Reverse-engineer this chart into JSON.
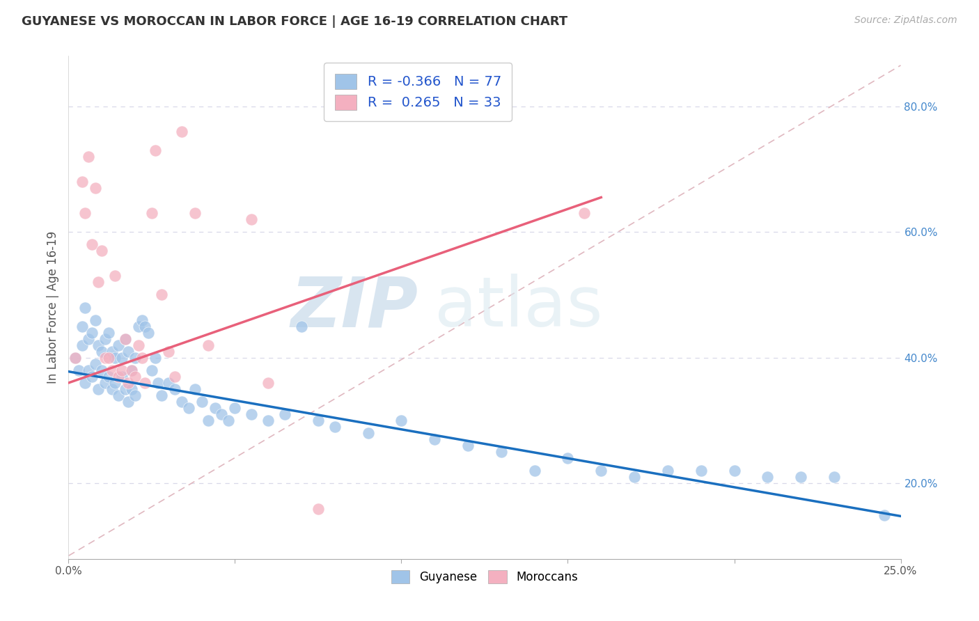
{
  "title": "GUYANESE VS MOROCCAN IN LABOR FORCE | AGE 16-19 CORRELATION CHART",
  "source": "Source: ZipAtlas.com",
  "ylabel": "In Labor Force | Age 16-19",
  "x_min": 0.0,
  "x_max": 0.25,
  "y_min": 0.08,
  "y_max": 0.88,
  "x_ticks": [
    0.0,
    0.05,
    0.1,
    0.15,
    0.2,
    0.25
  ],
  "y_ticks": [
    0.2,
    0.4,
    0.6,
    0.8
  ],
  "background_color": "#ffffff",
  "grid_color": "#d8d8e8",
  "blue_color": "#a0c4e8",
  "pink_color": "#f4b0c0",
  "blue_line_color": "#1a6fbf",
  "pink_line_color": "#e8607a",
  "dashed_line_color": "#e0b8c0",
  "legend_R_blue": "-0.366",
  "legend_N_blue": "77",
  "legend_R_pink": "0.265",
  "legend_N_pink": "33",
  "legend_label_blue": "Guyanese",
  "legend_label_pink": "Moroccans",
  "watermark_zip": "ZIP",
  "watermark_atlas": "atlas",
  "blue_scatter_x": [
    0.002,
    0.003,
    0.004,
    0.004,
    0.005,
    0.005,
    0.006,
    0.006,
    0.007,
    0.007,
    0.008,
    0.008,
    0.009,
    0.009,
    0.01,
    0.01,
    0.011,
    0.011,
    0.012,
    0.012,
    0.013,
    0.013,
    0.014,
    0.014,
    0.015,
    0.015,
    0.016,
    0.016,
    0.017,
    0.017,
    0.018,
    0.018,
    0.019,
    0.019,
    0.02,
    0.02,
    0.021,
    0.022,
    0.023,
    0.024,
    0.025,
    0.026,
    0.027,
    0.028,
    0.03,
    0.032,
    0.034,
    0.036,
    0.038,
    0.04,
    0.042,
    0.044,
    0.046,
    0.048,
    0.05,
    0.055,
    0.06,
    0.065,
    0.07,
    0.075,
    0.08,
    0.09,
    0.1,
    0.11,
    0.12,
    0.13,
    0.14,
    0.15,
    0.16,
    0.17,
    0.18,
    0.19,
    0.2,
    0.21,
    0.22,
    0.23,
    0.245
  ],
  "blue_scatter_y": [
    0.4,
    0.38,
    0.45,
    0.42,
    0.48,
    0.36,
    0.43,
    0.38,
    0.44,
    0.37,
    0.46,
    0.39,
    0.42,
    0.35,
    0.41,
    0.38,
    0.43,
    0.36,
    0.44,
    0.37,
    0.41,
    0.35,
    0.4,
    0.36,
    0.42,
    0.34,
    0.4,
    0.37,
    0.43,
    0.35,
    0.41,
    0.33,
    0.38,
    0.35,
    0.4,
    0.34,
    0.45,
    0.46,
    0.45,
    0.44,
    0.38,
    0.4,
    0.36,
    0.34,
    0.36,
    0.35,
    0.33,
    0.32,
    0.35,
    0.33,
    0.3,
    0.32,
    0.31,
    0.3,
    0.32,
    0.31,
    0.3,
    0.31,
    0.45,
    0.3,
    0.29,
    0.28,
    0.3,
    0.27,
    0.26,
    0.25,
    0.22,
    0.24,
    0.22,
    0.21,
    0.22,
    0.22,
    0.22,
    0.21,
    0.21,
    0.21,
    0.15
  ],
  "pink_scatter_x": [
    0.002,
    0.004,
    0.005,
    0.006,
    0.007,
    0.008,
    0.009,
    0.01,
    0.011,
    0.012,
    0.013,
    0.014,
    0.015,
    0.016,
    0.017,
    0.018,
    0.019,
    0.02,
    0.021,
    0.022,
    0.023,
    0.025,
    0.026,
    0.028,
    0.03,
    0.032,
    0.034,
    0.038,
    0.042,
    0.055,
    0.06,
    0.075,
    0.155
  ],
  "pink_scatter_y": [
    0.4,
    0.68,
    0.63,
    0.72,
    0.58,
    0.67,
    0.52,
    0.57,
    0.4,
    0.4,
    0.38,
    0.53,
    0.37,
    0.38,
    0.43,
    0.36,
    0.38,
    0.37,
    0.42,
    0.4,
    0.36,
    0.63,
    0.73,
    0.5,
    0.41,
    0.37,
    0.76,
    0.63,
    0.42,
    0.62,
    0.36,
    0.16,
    0.63
  ],
  "blue_line_x": [
    0.0,
    0.25
  ],
  "blue_line_y": [
    0.378,
    0.148
  ],
  "pink_line_x": [
    0.0,
    0.16
  ],
  "pink_line_y": [
    0.36,
    0.655
  ],
  "dashed_line_x": [
    0.0,
    0.25
  ],
  "dashed_line_y": [
    0.085,
    0.865
  ]
}
